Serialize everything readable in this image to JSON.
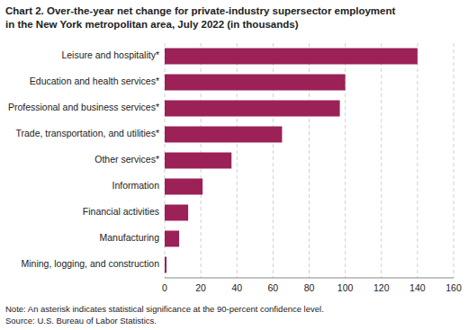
{
  "chart_data": {
    "type": "bar",
    "orientation": "horizontal",
    "title": [
      "Chart 2. Over-the-year net change for private-industry supersector employment",
      "in the New York metropolitan area, July 2022  (in thousands)"
    ],
    "categories": [
      "Mining, logging, and construction",
      "Manufacturing",
      "Financial activities",
      "Information",
      "Other services*",
      "Trade, transportation, and utilities*",
      "Professional and business services*",
      "Education and health services*",
      "Leisure and hospitality*"
    ],
    "values": [
      1,
      8,
      13,
      21,
      37,
      65,
      97,
      100,
      140
    ],
    "color": "#9B2157",
    "xlim": [
      0,
      160
    ],
    "xticks": [
      0,
      20,
      40,
      60,
      80,
      100,
      120,
      140,
      160
    ],
    "grid": true,
    "annotations": [
      "Note: An asterisk indicates statistical significance at the 90-percent confidence level.",
      "Source: U.S. Bureau of Labor Statistics."
    ]
  }
}
